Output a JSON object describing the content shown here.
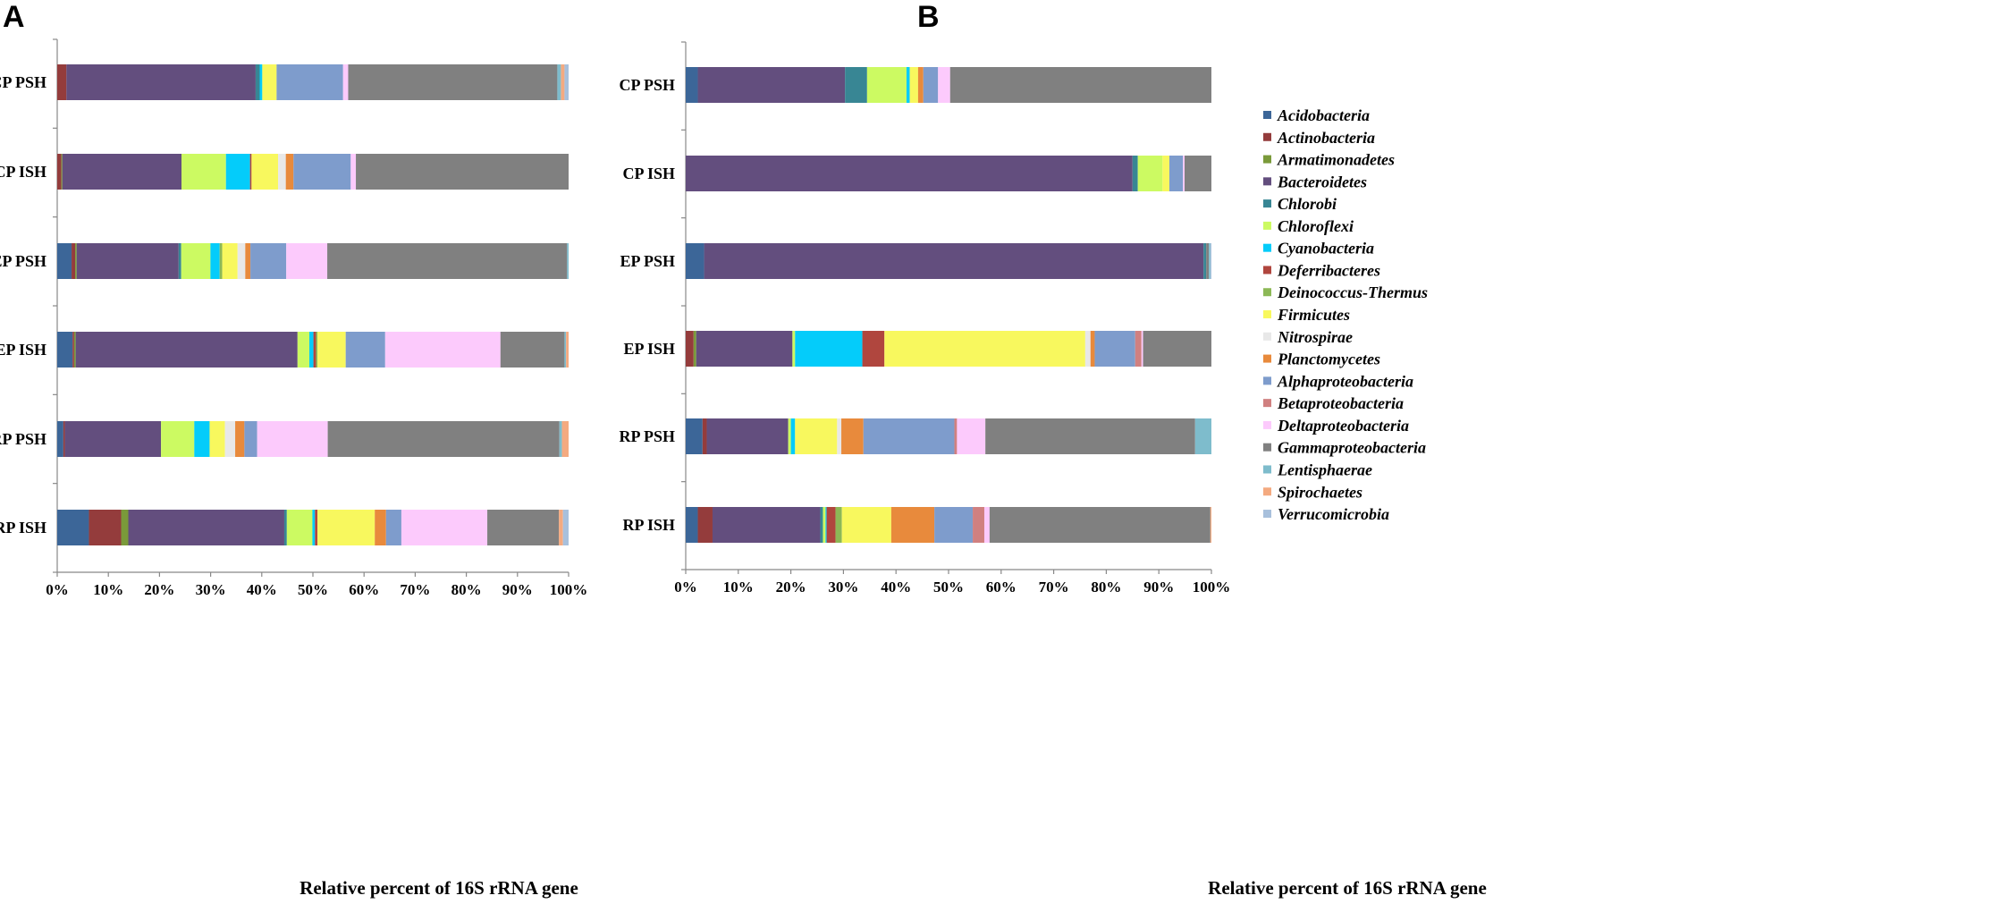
{
  "chart_data": [
    {
      "type": "bar",
      "orientation": "horizontal",
      "stacked": "percent",
      "panel": "A",
      "categories": [
        "CP PSH",
        "CP ISH",
        "EP PSH",
        "EP ISH",
        "RP PSH",
        "RP ISH"
      ],
      "xlabel": "Relative percent of 16S rRNA gene",
      "xticks": [
        "0%",
        "10%",
        "20%",
        "30%",
        "40%",
        "50%",
        "60%",
        "70%",
        "80%",
        "90%",
        "100%"
      ],
      "xlim": [
        0,
        100
      ],
      "series": [
        {
          "name": "Acidobacteria",
          "values": [
            0,
            0,
            2.8,
            3.0,
            1.2,
            6.2
          ]
        },
        {
          "name": "Actinobacteria",
          "values": [
            1.8,
            0.8,
            0.7,
            0.3,
            0.3,
            6.3
          ]
        },
        {
          "name": "Armatimonadetes",
          "values": [
            0,
            0.2,
            0.3,
            0.3,
            0,
            1.4
          ]
        },
        {
          "name": "Bacteroidetes",
          "values": [
            37.0,
            23.3,
            19.9,
            43.3,
            18.8,
            30.5
          ]
        },
        {
          "name": "Chlorobi",
          "values": [
            0.8,
            0,
            0.5,
            0,
            0,
            0.5
          ]
        },
        {
          "name": "Chloroflexi",
          "values": [
            0,
            8.7,
            5.7,
            2.3,
            6.5,
            5.0
          ]
        },
        {
          "name": "Cyanobacteria",
          "values": [
            0.5,
            4.7,
            1.8,
            0.8,
            3.0,
            0.5
          ]
        },
        {
          "name": "Deferribacteres",
          "values": [
            0,
            0.3,
            0,
            0.5,
            0,
            0.5
          ]
        },
        {
          "name": "Deinococcus-Thermus",
          "values": [
            0,
            0,
            0.5,
            0.3,
            0,
            0
          ]
        },
        {
          "name": "Firmicutes",
          "values": [
            2.8,
            5.2,
            3.0,
            5.5,
            3.0,
            11.2
          ]
        },
        {
          "name": "Nitrospirae",
          "values": [
            0,
            1.5,
            1.5,
            0,
            2.0,
            0
          ]
        },
        {
          "name": "Planctomycetes",
          "values": [
            0,
            1.5,
            1.0,
            0,
            1.8,
            2.2
          ]
        },
        {
          "name": "Alphaproteobacteria",
          "values": [
            13.0,
            11.2,
            7.0,
            7.7,
            2.5,
            3.0
          ]
        },
        {
          "name": "Betaproteobacteria",
          "values": [
            0,
            0,
            0,
            0,
            0,
            0
          ]
        },
        {
          "name": "Deltaproteobacteria",
          "values": [
            1.0,
            1.0,
            8.0,
            22.5,
            13.8,
            16.8
          ]
        },
        {
          "name": "Gammaproteobacteria",
          "values": [
            40.9,
            41.6,
            46.8,
            12.5,
            45.3,
            14.0
          ]
        },
        {
          "name": "Lentisphaerae",
          "values": [
            0.7,
            0,
            0.3,
            0.3,
            0.5,
            0
          ]
        },
        {
          "name": "Spirochaetes",
          "values": [
            0.7,
            0,
            0,
            0.5,
            1.3,
            0.8
          ]
        },
        {
          "name": "Verrucomicrobia",
          "values": [
            0.8,
            0,
            0,
            0,
            0,
            1.1
          ]
        }
      ]
    },
    {
      "type": "bar",
      "orientation": "horizontal",
      "stacked": "percent",
      "panel": "B",
      "categories": [
        "CP PSH",
        "CP ISH",
        "EP PSH",
        "EP ISH",
        "RP PSH",
        "RP ISH"
      ],
      "xlabel": "Relative percent of 16S rRNA gene",
      "xticks": [
        "0%",
        "10%",
        "20%",
        "30%",
        "40%",
        "50%",
        "60%",
        "70%",
        "80%",
        "90%",
        "100%"
      ],
      "xlim": [
        0,
        100
      ],
      "series": [
        {
          "name": "Acidobacteria",
          "values": [
            2.3,
            0,
            3.5,
            0,
            3.2,
            2.3
          ]
        },
        {
          "name": "Actinobacteria",
          "values": [
            0,
            0,
            0,
            1.5,
            0.8,
            2.8
          ]
        },
        {
          "name": "Armatimonadetes",
          "values": [
            0,
            0,
            0,
            0.5,
            0,
            0
          ]
        },
        {
          "name": "Bacteroidetes",
          "values": [
            28.0,
            85.0,
            95.0,
            18.3,
            15.5,
            20.5
          ]
        },
        {
          "name": "Chlorobi",
          "values": [
            4.2,
            1.0,
            0.5,
            0,
            0,
            0.5
          ]
        },
        {
          "name": "Chloroflexi",
          "values": [
            7.5,
            4.7,
            0,
            0.5,
            0.5,
            0.5
          ]
        },
        {
          "name": "Cyanobacteria",
          "values": [
            0.6,
            0,
            0,
            12.8,
            0.8,
            0.2
          ]
        },
        {
          "name": "Deferribacteres",
          "values": [
            0,
            0,
            0,
            4.2,
            0,
            1.7
          ]
        },
        {
          "name": "Deinococcus-Thermus",
          "values": [
            0,
            0,
            0,
            0,
            0,
            1.2
          ]
        },
        {
          "name": "Firmicutes",
          "values": [
            1.6,
            1.3,
            0,
            38.2,
            8.0,
            9.4
          ]
        },
        {
          "name": "Nitrospirae",
          "values": [
            0,
            0,
            0,
            1.0,
            0.8,
            0
          ]
        },
        {
          "name": "Planctomycetes",
          "values": [
            1.0,
            0,
            0,
            0.8,
            4.2,
            8.2
          ]
        },
        {
          "name": "Alphaproteobacteria",
          "values": [
            2.8,
            2.6,
            0,
            7.7,
            17.3,
            7.3
          ]
        },
        {
          "name": "Betaproteobacteria",
          "values": [
            0,
            0,
            0,
            1.2,
            0.5,
            2.2
          ]
        },
        {
          "name": "Deltaproteobacteria",
          "values": [
            2.3,
            0.3,
            0,
            0.3,
            5.4,
            1.0
          ]
        },
        {
          "name": "Gammaproteobacteria",
          "values": [
            49.7,
            5.1,
            0.5,
            13.0,
            39.9,
            42.0
          ]
        },
        {
          "name": "Lentisphaerae",
          "values": [
            0,
            0,
            0.3,
            0,
            3.1,
            0
          ]
        },
        {
          "name": "Spirochaetes",
          "values": [
            0,
            0,
            0,
            0,
            0,
            0.2
          ]
        },
        {
          "name": "Verrucomicrobia",
          "values": [
            0,
            0,
            0.2,
            0,
            0,
            0
          ]
        }
      ]
    }
  ],
  "legend": {
    "items": [
      "Acidobacteria",
      "Actinobacteria",
      "Armatimonadetes",
      "Bacteroidetes",
      "Chlorobi",
      "Chloroflexi",
      "Cyanobacteria",
      "Deferribacteres",
      "Deinococcus-Thermus",
      "Firmicutes",
      "Nitrospirae",
      "Planctomycetes",
      "Alphaproteobacteria",
      "Betaproteobacteria",
      "Deltaproteobacteria",
      "Gammaproteobacteria",
      "Lentisphaerae",
      "Spirochaetes",
      "Verrucomicrobia"
    ],
    "colors": {
      "Acidobacteria": "#3c6698",
      "Actinobacteria": "#943c3c",
      "Armatimonadetes": "#7a9a3a",
      "Bacteroidetes": "#634e7e",
      "Chlorobi": "#388694",
      "Chloroflexi": "#ccfa62",
      "Cyanobacteria": "#04ccfa",
      "Deferribacteres": "#b0463e",
      "Deinococcus-Thermus": "#8cb856",
      "Firmicutes": "#f8f85e",
      "Nitrospirae": "#e8e8e8",
      "Planctomycetes": "#e88a3c",
      "Alphaproteobacteria": "#7e9ccc",
      "Betaproteobacteria": "#d08080",
      "Deltaproteobacteria": "#fccafc",
      "Gammaproteobacteria": "#808080",
      "Lentisphaerae": "#7ebccc",
      "Spirochaetes": "#f4aa80",
      "Verrucomicrobia": "#a8c0dc"
    }
  }
}
